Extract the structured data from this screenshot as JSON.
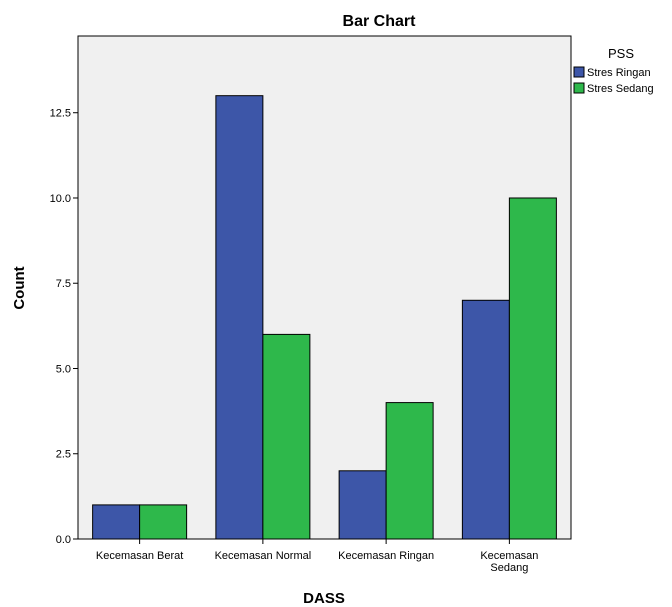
{
  "chart_data": {
    "type": "bar",
    "title": "Bar Chart",
    "xlabel": "DASS",
    "ylabel": "Count",
    "categories": [
      [
        "Kecemasan Berat"
      ],
      [
        "Kecemasan Normal"
      ],
      [
        "Kecemasan Ringan"
      ],
      [
        "Kecemasan",
        "Sedang"
      ]
    ],
    "series": [
      {
        "name": "Stres Ringan",
        "color": "#3d56a8",
        "values": [
          1,
          13,
          2,
          7
        ]
      },
      {
        "name": "Stres Sedang",
        "color": "#2eb84b",
        "values": [
          1,
          6,
          4,
          10
        ]
      }
    ],
    "ylim": [
      0,
      14.75
    ],
    "yticks": [
      "0.0",
      "2.5",
      "5.0",
      "7.5",
      "10.0",
      "12.5"
    ],
    "legend_title": "PSS",
    "legend_position": "top-right",
    "grid": false,
    "plot_background": "#f0f0f0"
  }
}
